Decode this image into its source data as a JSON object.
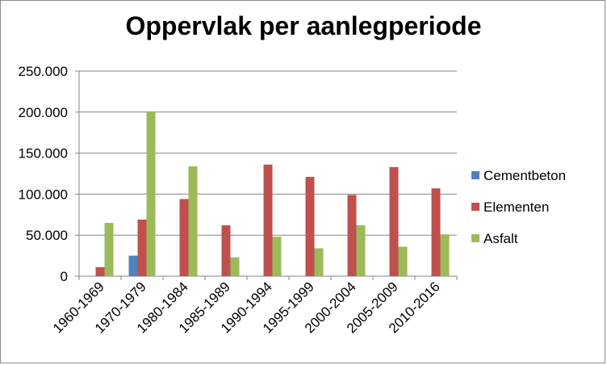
{
  "chart_data": {
    "type": "bar",
    "title": "Oppervlak per aanlegperiode",
    "xlabel": "",
    "ylabel": "",
    "ylim": [
      0,
      250000
    ],
    "yticks": [
      0,
      50000,
      100000,
      150000,
      200000,
      250000
    ],
    "ytick_labels": [
      "0",
      "50.000",
      "100.000",
      "150.000",
      "200.000",
      "250.000"
    ],
    "grid": true,
    "legend_position": "right",
    "categories": [
      "1960-1969",
      "1970-1979",
      "1980-1984",
      "1985-1989",
      "1990-1994",
      "1995-1999",
      "2000-2004",
      "2005-2009",
      "2010-2016"
    ],
    "series": [
      {
        "name": "Cementbeton",
        "color": "#4F81BD",
        "values": [
          0,
          25000,
          0,
          0,
          0,
          0,
          0,
          0,
          0
        ]
      },
      {
        "name": "Elementen",
        "color": "#C0504D",
        "values": [
          11000,
          69000,
          94000,
          62000,
          136000,
          121000,
          99000,
          133000,
          107000
        ]
      },
      {
        "name": "Asfalt",
        "color": "#9BBB59",
        "values": [
          65000,
          201000,
          134000,
          23000,
          48000,
          34000,
          62000,
          36000,
          51000
        ]
      }
    ]
  }
}
